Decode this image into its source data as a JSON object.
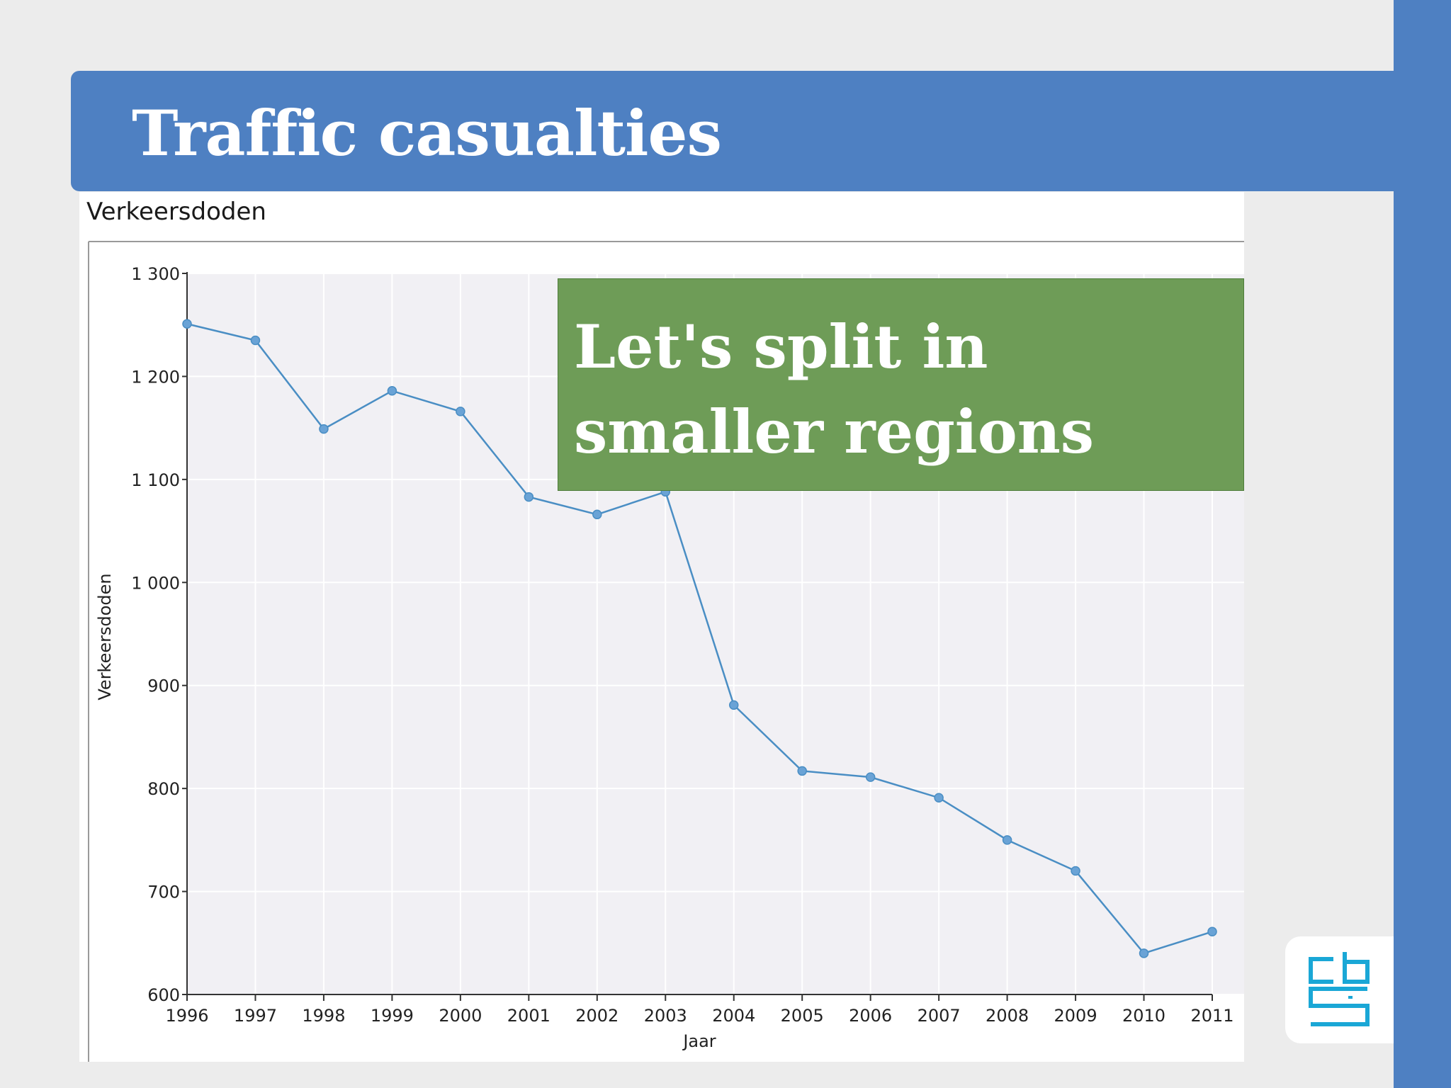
{
  "slide": {
    "title": "Traffic casualties",
    "callout": "Let's split in\nsmaller regions",
    "colors": {
      "accent_blue": "#4e80c2",
      "callout_green": "#6e9c57",
      "series_line": "#4a8ec4",
      "logo_cyan": "#1aa7d6"
    },
    "logo_icon": "cbs-logo-icon"
  },
  "chart_header": "Verkeersdoden",
  "chart_data": {
    "type": "line",
    "title": "Verkeersdoden",
    "xlabel": "Jaar",
    "ylabel": "Verkeersdoden",
    "x": [
      1996,
      1997,
      1998,
      1999,
      2000,
      2001,
      2002,
      2003,
      2004,
      2005,
      2006,
      2007,
      2008,
      2009,
      2010,
      2011
    ],
    "values": [
      1251,
      1235,
      1149,
      1186,
      1166,
      1083,
      1066,
      1088,
      881,
      817,
      811,
      791,
      750,
      720,
      640,
      661
    ],
    "ylim": [
      600,
      1300
    ],
    "yticks": [
      600,
      700,
      800,
      900,
      1000,
      1100,
      1200,
      1300
    ],
    "ytick_labels": [
      "600",
      "700",
      "800",
      "900",
      "1 000",
      "1 100",
      "1 200",
      "1 300"
    ],
    "grid": true,
    "legend": "none"
  }
}
